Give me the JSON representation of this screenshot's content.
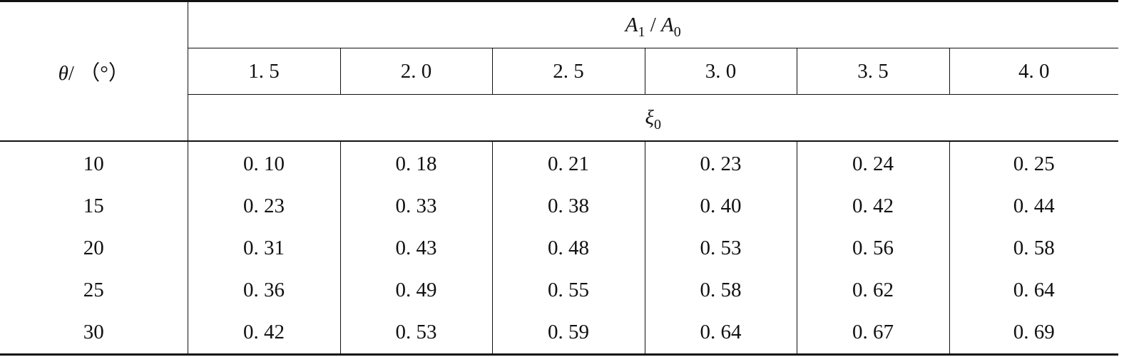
{
  "header": {
    "theta_symbol": "θ",
    "theta_unit": "/ （°）",
    "ratio": {
      "a1": "A",
      "a1_sub": "1",
      "slash": " / ",
      "a0": "A",
      "a0_sub": "0"
    },
    "xi": {
      "symbol": "ξ",
      "sub": "0"
    },
    "ratios": [
      "1. 5",
      "2. 0",
      "2. 5",
      "3. 0",
      "3. 5",
      "4. 0"
    ]
  },
  "rows": [
    {
      "theta": "10",
      "values": [
        "0. 10",
        "0. 18",
        "0. 21",
        "0. 23",
        "0. 24",
        "0. 25"
      ]
    },
    {
      "theta": "15",
      "values": [
        "0. 23",
        "0. 33",
        "0. 38",
        "0. 40",
        "0. 42",
        "0. 44"
      ]
    },
    {
      "theta": "20",
      "values": [
        "0. 31",
        "0. 43",
        "0. 48",
        "0. 53",
        "0. 56",
        "0. 58"
      ]
    },
    {
      "theta": "25",
      "values": [
        "0. 36",
        "0. 49",
        "0. 55",
        "0. 58",
        "0. 62",
        "0. 64"
      ]
    },
    {
      "theta": "30",
      "values": [
        "0. 42",
        "0. 53",
        "0. 59",
        "0. 64",
        "0. 67",
        "0. 69"
      ]
    }
  ]
}
